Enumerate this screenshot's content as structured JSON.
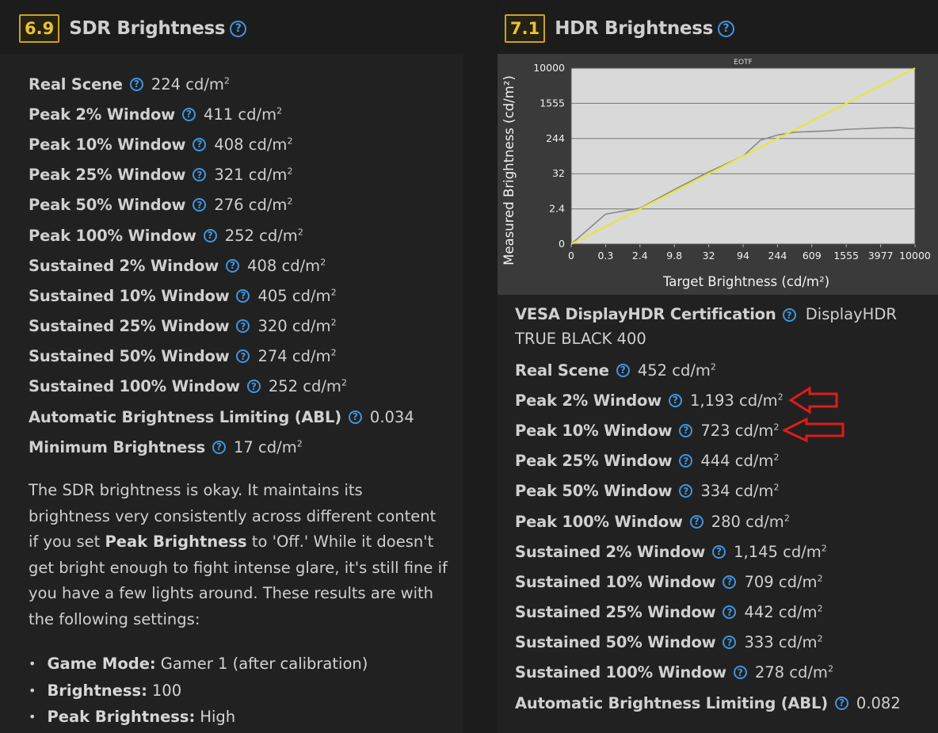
{
  "sdr": {
    "score": "6.9",
    "title": "SDR Brightness",
    "metrics": [
      {
        "label": "Real Scene",
        "value": "224 cd/m",
        "sup": "2"
      },
      {
        "label": "Peak 2% Window",
        "value": "411 cd/m",
        "sup": "2"
      },
      {
        "label": "Peak 10% Window",
        "value": "408 cd/m",
        "sup": "2"
      },
      {
        "label": "Peak 25% Window",
        "value": "321 cd/m",
        "sup": "2"
      },
      {
        "label": "Peak 50% Window",
        "value": "276 cd/m",
        "sup": "2"
      },
      {
        "label": "Peak 100% Window",
        "value": "252 cd/m",
        "sup": "2"
      },
      {
        "label": "Sustained 2% Window",
        "value": "408 cd/m",
        "sup": "2"
      },
      {
        "label": "Sustained 10% Window",
        "value": "405 cd/m",
        "sup": "2"
      },
      {
        "label": "Sustained 25% Window",
        "value": "320 cd/m",
        "sup": "2"
      },
      {
        "label": "Sustained 50% Window",
        "value": "274 cd/m",
        "sup": "2"
      },
      {
        "label": "Sustained 100% Window",
        "value": "252 cd/m",
        "sup": "2"
      },
      {
        "label": "Automatic Brightness Limiting (ABL)",
        "value": "0.034",
        "sup": ""
      },
      {
        "label": "Minimum Brightness",
        "value": "17 cd/m",
        "sup": "2"
      }
    ],
    "description": {
      "part1": "The SDR brightness is okay. It maintains its brightness very consistently across different content if you set",
      "bold": "Peak Brightness",
      "part2": "to 'Off.' While it doesn't get bright enough to fight intense glare, it's still fine if you have a few lights around. These results are with the following settings:"
    },
    "settings": [
      {
        "label": "Game Mode:",
        "value": "Gamer 1 (after calibration)"
      },
      {
        "label": "Brightness:",
        "value": "100"
      },
      {
        "label": "Peak Brightness:",
        "value": "High"
      }
    ]
  },
  "hdr": {
    "score": "7.1",
    "title": "HDR Brightness",
    "vesa": {
      "label": "VESA DisplayHDR Certification",
      "value": "DisplayHDR TRUE BLACK 400"
    },
    "metrics": [
      {
        "label": "Real Scene",
        "value": "452 cd/m",
        "sup": "2"
      },
      {
        "label": "Peak 2% Window",
        "value": "1,193 cd/m",
        "sup": "2"
      },
      {
        "label": "Peak 10% Window",
        "value": "723 cd/m",
        "sup": "2"
      },
      {
        "label": "Peak 25% Window",
        "value": "444 cd/m",
        "sup": "2"
      },
      {
        "label": "Peak 50% Window",
        "value": "334 cd/m",
        "sup": "2"
      },
      {
        "label": "Peak 100% Window",
        "value": "280 cd/m",
        "sup": "2"
      },
      {
        "label": "Sustained 2% Window",
        "value": "1,145 cd/m",
        "sup": "2"
      },
      {
        "label": "Sustained 10% Window",
        "value": "709 cd/m",
        "sup": "2"
      },
      {
        "label": "Sustained 25% Window",
        "value": "442 cd/m",
        "sup": "2"
      },
      {
        "label": "Sustained 50% Window",
        "value": "333 cd/m",
        "sup": "2"
      },
      {
        "label": "Sustained 100% Window",
        "value": "278 cd/m",
        "sup": "2"
      },
      {
        "label": "Automatic Brightness Limiting (ABL)",
        "value": "0.082",
        "sup": ""
      }
    ]
  },
  "chart_data": {
    "type": "line",
    "title": "EOTF",
    "xlabel": "Target Brightness (cd/m²)",
    "ylabel": "Measured Brightness (cd/m²)",
    "x_ticks": [
      "0",
      "0.3",
      "2.4",
      "9.8",
      "32",
      "94",
      "244",
      "609",
      "1555",
      "3977",
      "10000"
    ],
    "y_ticks": [
      "0",
      "2.4",
      "32",
      "244",
      "1555",
      "10000"
    ],
    "grid": true,
    "series": [
      {
        "color": "#e8e834",
        "x_index": [
          0,
          10
        ],
        "y_index": [
          0,
          5
        ]
      },
      {
        "color": "#8a8a8a",
        "x_index": [
          0,
          1,
          2,
          3,
          4,
          5,
          5.5,
          6,
          6.5,
          7,
          7.5,
          8,
          8.5,
          9,
          9.5,
          10
        ],
        "y_index": [
          0,
          0.85,
          1.02,
          1.55,
          2.05,
          2.5,
          2.95,
          3.1,
          3.18,
          3.2,
          3.22,
          3.26,
          3.28,
          3.3,
          3.31,
          3.28
        ]
      }
    ]
  },
  "colors": {
    "score_border": "#c9a227",
    "help_icon": "#3f95e0",
    "annotation_arrow": "#e01b1b"
  },
  "icons": {
    "help": "question-circle-icon",
    "annotation": "red-arrow-icon"
  }
}
